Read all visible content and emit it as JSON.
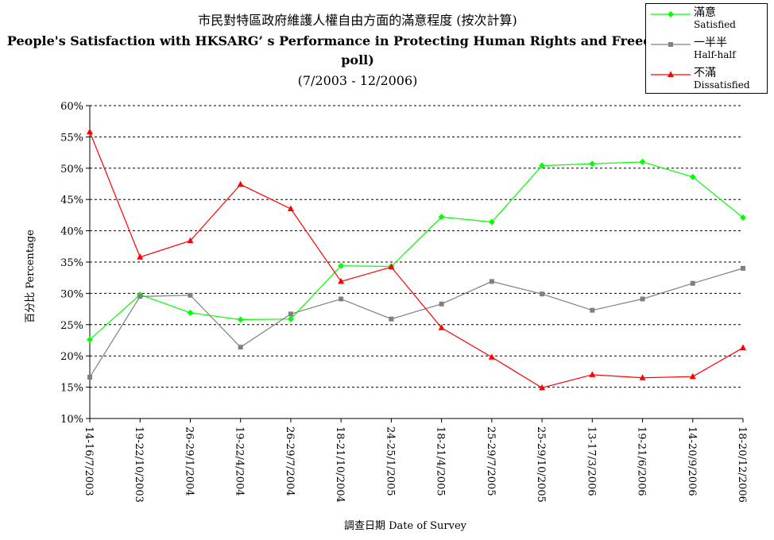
{
  "chart_data": {
    "type": "line",
    "title": "市民對特區政府維護人權自由方面的滿意程度 (按次計算)",
    "subtitle": "People's Satisfaction with HKSARG’ s Performance in Protecting Human Rights and Freedom (per poll)",
    "subtitle_line1": "People's Satisfaction with HKSARG’ s Performance in Protecting Human Rights and Freedom (per",
    "subtitle_line2": "poll)",
    "date_range": "(7/2003 - 12/2006)",
    "xlabel": "調查日期 Date of Survey",
    "ylabel": "百分比 Percentage",
    "ylim": [
      10,
      60
    ],
    "yticks": [
      10,
      15,
      20,
      25,
      30,
      35,
      40,
      45,
      50,
      55,
      60
    ],
    "ytick_labels": [
      "10%",
      "15%",
      "20%",
      "25%",
      "30%",
      "35%",
      "40%",
      "45%",
      "50%",
      "55%",
      "60%"
    ],
    "grid": "horizontal dashed",
    "legend_position": "top-right",
    "categories": [
      "14-16/7/2003",
      "19-22/10/2003",
      "26-29/1/2004",
      "19-22/4/2004",
      "26-29/7/2004",
      "18-21/10/2004",
      "24-25/1/2005",
      "18-21/4/2005",
      "25-29/7/2005",
      "25-29/10/2005",
      "13-17/3/2006",
      "19-21/6/2006",
      "14-20/9/2006",
      "18-20/12/2006"
    ],
    "series": [
      {
        "name": "滿意",
        "name_en": "Satisfied",
        "color": "#00ff00",
        "marker": "diamond",
        "values": [
          22.6,
          29.8,
          26.9,
          25.8,
          25.9,
          34.4,
          34.3,
          42.2,
          41.4,
          50.4,
          50.7,
          51.0,
          48.6,
          42.1
        ]
      },
      {
        "name": "一半半",
        "name_en": "Half-half",
        "color": "#808080",
        "marker": "square",
        "values": [
          16.6,
          29.5,
          29.7,
          21.4,
          26.7,
          29.1,
          25.9,
          28.3,
          31.9,
          29.9,
          27.3,
          29.1,
          31.6,
          34.0
        ]
      },
      {
        "name": "不滿",
        "name_en": "Dissatisfied",
        "color": "#ff0000",
        "marker": "triangle",
        "values": [
          55.8,
          35.8,
          38.4,
          47.4,
          43.5,
          31.9,
          34.2,
          24.5,
          19.8,
          14.9,
          17.0,
          16.5,
          16.7,
          21.3
        ]
      }
    ]
  }
}
